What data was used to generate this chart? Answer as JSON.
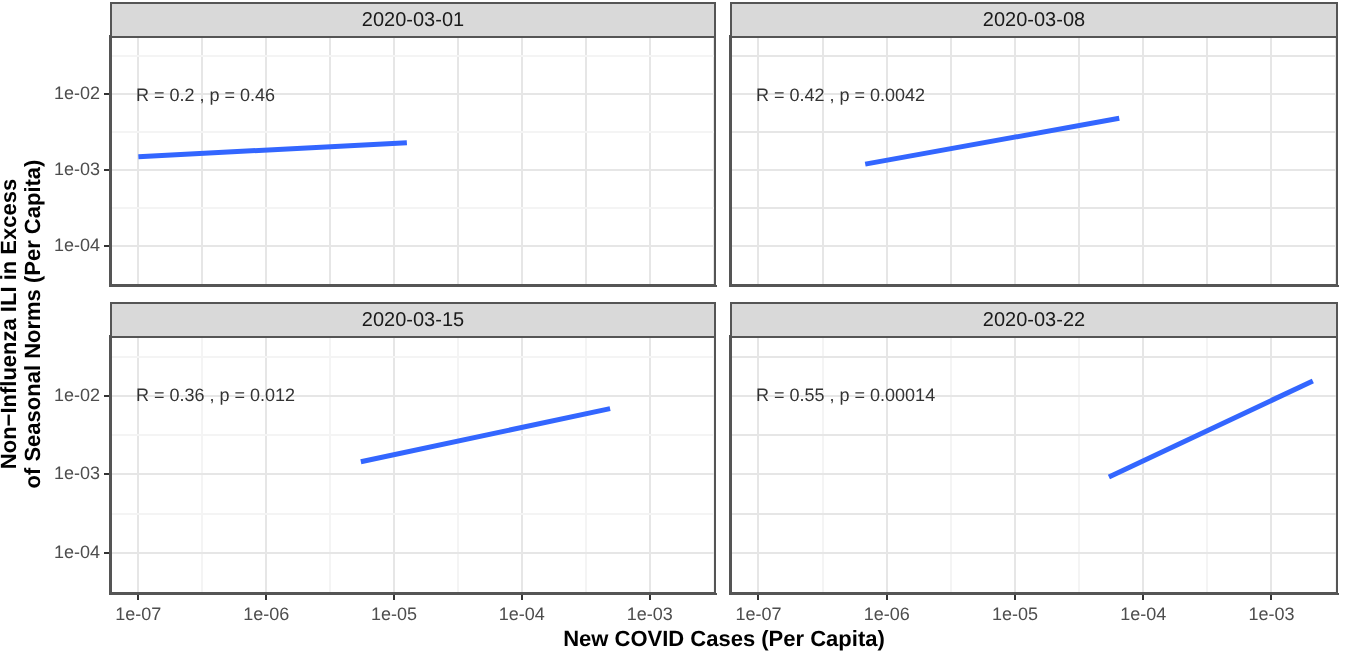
{
  "chart_data": [
    {
      "type": "line",
      "title": "2020-03-01",
      "ylabel": "Non−Influenza ILI in Excess\nof Seasonal Norms (Per Capita)",
      "annotations": [
        "R = 0.2 , p = 0.46"
      ],
      "tick_labels": "y",
      "log": "xy",
      "grid": true,
      "series": [
        {
          "color": "#3366ff",
          "x": [
            1e-07,
            1.26e-05
          ],
          "values": [
            0.0015,
            0.0023
          ]
        }
      ],
      "xlim": [
        6e-08,
        0.0033
      ],
      "ylim": [
        3e-05,
        0.058
      ],
      "xticks": [
        1e-07,
        3.16e-07,
        1e-06,
        3.16e-06,
        1e-05,
        3.16e-05,
        0.0001,
        0.000316,
        0.001,
        0.00316
      ],
      "yticks": [
        {
          "value": 0.0001,
          "label": "1e-04"
        },
        {
          "value": 0.000316,
          "label": null
        },
        {
          "value": 0.001,
          "label": "1e-03"
        },
        {
          "value": 0.00316,
          "label": null
        },
        {
          "value": 0.01,
          "label": "1e-02"
        },
        {
          "value": 0.0316,
          "label": null
        }
      ]
    },
    {
      "type": "line",
      "title": "2020-03-08",
      "annotations": [
        "R = 0.42 , p = 0.0042"
      ],
      "tick_labels": false,
      "log": "xy",
      "grid": true,
      "series": [
        {
          "color": "#3366ff",
          "x": [
            6.8e-07,
            6.5e-05
          ],
          "values": [
            0.0012,
            0.0048
          ]
        }
      ],
      "xlim": [
        6e-08,
        0.0033
      ],
      "ylim": [
        3e-05,
        0.058
      ],
      "xticks": [
        1e-07,
        3.16e-07,
        1e-06,
        3.16e-06,
        1e-05,
        3.16e-05,
        0.0001,
        0.000316,
        0.001,
        0.00316
      ],
      "yticks": [
        0.0001,
        0.000316,
        0.001,
        0.00316,
        0.01,
        0.0316
      ]
    },
    {
      "type": "line",
      "title": "2020-03-15",
      "xlabel": "New COVID Cases (Per Capita)",
      "annotations": [
        "R = 0.36 , p = 0.012"
      ],
      "log": "xy",
      "grid": true,
      "series": [
        {
          "color": "#3366ff",
          "x": [
            5.5e-06,
            0.00049
          ],
          "values": [
            0.00145,
            0.0069
          ]
        }
      ],
      "xlim": [
        6e-08,
        0.0033
      ],
      "ylim": [
        3e-05,
        0.058
      ],
      "xticks": [
        {
          "value": 1e-07,
          "label": "1e-07"
        },
        {
          "value": 3.16e-07,
          "label": null
        },
        {
          "value": 1e-06,
          "label": "1e-06"
        },
        {
          "value": 3.16e-06,
          "label": null
        },
        {
          "value": 1e-05,
          "label": "1e-05"
        },
        {
          "value": 3.16e-05,
          "label": null
        },
        {
          "value": 0.0001,
          "label": "1e-04"
        },
        {
          "value": 0.000316,
          "label": null
        },
        {
          "value": 0.001,
          "label": "1e-03"
        },
        {
          "value": 0.00316,
          "label": null
        }
      ],
      "yticks": [
        {
          "value": 0.0001,
          "label": "1e-04"
        },
        {
          "value": 0.000316,
          "label": null
        },
        {
          "value": 0.001,
          "label": "1e-03"
        },
        {
          "value": 0.00316,
          "label": null
        },
        {
          "value": 0.01,
          "label": "1e-02"
        },
        {
          "value": 0.0316,
          "label": null
        }
      ]
    },
    {
      "type": "line",
      "title": "2020-03-22",
      "annotations": [
        "R = 0.55 , p = 0.00014"
      ],
      "tick_labels": "x",
      "log": "xy",
      "grid": true,
      "series": [
        {
          "color": "#3366ff",
          "x": [
            5.4e-05,
            0.0021
          ],
          "values": [
            0.00093,
            0.0155
          ]
        }
      ],
      "xlim": [
        6e-08,
        0.0033
      ],
      "ylim": [
        3e-05,
        0.058
      ],
      "xticks": [
        {
          "value": 1e-07,
          "label": "1e-07"
        },
        {
          "value": 3.16e-07,
          "label": null
        },
        {
          "value": 1e-06,
          "label": "1e-06"
        },
        {
          "value": 3.16e-06,
          "label": null
        },
        {
          "value": 1e-05,
          "label": "1e-05"
        },
        {
          "value": 3.16e-05,
          "label": null
        },
        {
          "value": 0.0001,
          "label": "1e-04"
        },
        {
          "value": 0.000316,
          "label": null
        },
        {
          "value": 0.001,
          "label": "1e-03"
        },
        {
          "value": 0.00316,
          "label": null
        }
      ],
      "yticks": [
        0.0001,
        0.000316,
        0.001,
        0.00316,
        0.01,
        0.0316
      ]
    }
  ]
}
